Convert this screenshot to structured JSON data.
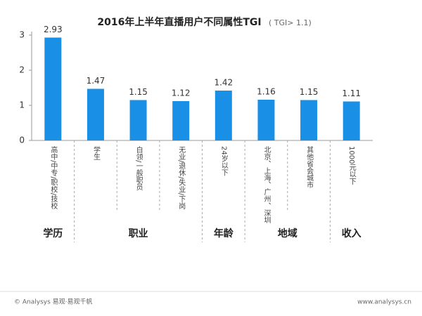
{
  "chart_data": {
    "type": "bar",
    "title": "2016年上半年直播用户不同属性TGI",
    "subtitle": "( TGI> 1.1)",
    "color": "#1a8fe6",
    "ylim": [
      0,
      3
    ],
    "yticks": [
      0,
      1,
      2,
      3
    ],
    "groups": [
      {
        "name": "学历",
        "categories": [
          "高中/中专/职校/技校"
        ],
        "values": [
          2.93
        ]
      },
      {
        "name": "职业",
        "categories": [
          "学生",
          "白领/一般职员",
          "无业/退休/失业/下岗"
        ],
        "values": [
          1.47,
          1.15,
          1.12
        ]
      },
      {
        "name": "年龄",
        "categories": [
          "24岁以下"
        ],
        "values": [
          1.42
        ]
      },
      {
        "name": "地域",
        "categories": [
          "北京、上海、广州、深圳",
          "其他省会城市"
        ],
        "values": [
          1.16,
          1.15
        ]
      },
      {
        "name": "收入",
        "categories": [
          "1000元以下"
        ],
        "values": [
          1.11
        ]
      }
    ]
  },
  "footer": {
    "left": "© Analysys 易观·易观千帆",
    "right": "www.analysys.cn"
  }
}
